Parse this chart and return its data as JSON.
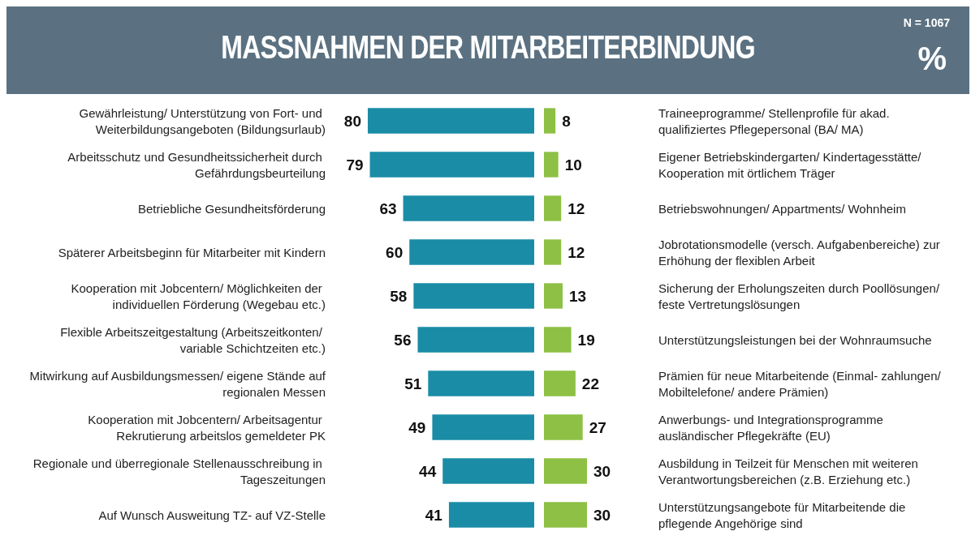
{
  "chart_data": [
    {
      "type": "bar",
      "orientation": "horizontal",
      "title": "MASSNAHMEN DER MITARBEITERBINDUNG",
      "annotations": [
        "N = 1067",
        "%"
      ],
      "tick_labels": "y",
      "data_labels": true,
      "color": "#1a8ca6",
      "categories": [
        "Gewährleistung/ Unterstützung von Fort- und Weiterbildungsangeboten (Bildungsurlaub)",
        "Arbeitsschutz und Gesundheitssicherheit durch Gefährdungsbeurteilung",
        "Betriebliche Gesundheitsförderung",
        "Späterer Arbeitsbeginn für Mitarbeiter mit Kindern",
        "Kooperation mit Jobcentern/ Möglichkeiten der individuellen Förderung (Wegebau etc.)",
        "Flexible Arbeitszeitgestaltung (Arbeitszeitkonten/ variable Schichtzeiten etc.)",
        "Mitwirkung auf Ausbildungsmessen/ eigene Stände auf regionalen Messen",
        "Kooperation mit Jobcentern/ Arbeitsagentur Rekrutierung arbeitslos gemeldeter PK",
        "Regionale und überregionale Stellenausschreibung in Tageszeitungen",
        "Auf Wunsch Ausweitung TZ- auf VZ-Stelle"
      ],
      "values": [
        80,
        79,
        63,
        60,
        58,
        56,
        51,
        49,
        44,
        41
      ]
    },
    {
      "type": "bar",
      "orientation": "horizontal",
      "tick_labels": "y",
      "data_labels": true,
      "color": "#8dc044",
      "categories": [
        "Traineeprogramme/ Stellenprofile für akad.  qualifiziertes Pflegepersonal (BA/ MA)",
        "Eigener Betriebskindergarten/ Kindertagesstätte/ Kooperation mit örtlichem Träger",
        "Betriebswohnungen/ Appartments/ Wohnheim",
        "Jobrotationsmodelle (versch. Aufgabenbereiche) zur Erhöhung der flexiblen Arbeit",
        "Sicherung der Erholungszeiten durch Poollösungen/ feste Vertretungslösungen",
        "Unterstützungsleistungen bei der Wohnraumsuche",
        "Prämien für neue Mitarbeitende (Einmal- zahlungen/ Mobiltelefone/ andere Prämien)",
        "Anwerbungs- und Integrationsprogramme ausländischer Pflegekräfte (EU)",
        "Ausbildung in Teilzeit für Menschen mit weiteren Verantwortungsbereichen (z.B. Erziehung etc.)",
        "Unterstützungsangebote für Mitarbeitende die pflegende Angehörige sind"
      ],
      "values": [
        8,
        10,
        12,
        12,
        13,
        19,
        22,
        27,
        30,
        30
      ]
    }
  ]
}
